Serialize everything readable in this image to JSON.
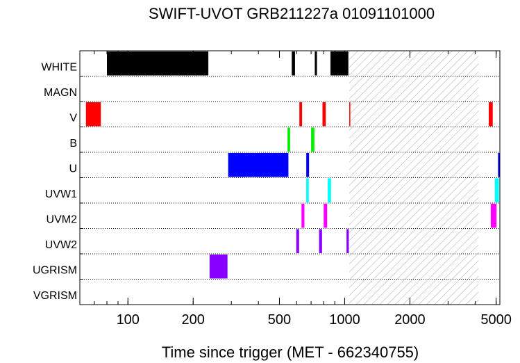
{
  "chart_data": {
    "type": "bar",
    "title": "SWIFT-UVOT GRB211227a 01091101000",
    "xlabel": "Time since trigger (MET - 662340755)",
    "ylabel": "",
    "x_scale": "log",
    "xlim": [
      60,
      5200
    ],
    "x_ticks": [
      {
        "value": 100,
        "label": "100"
      },
      {
        "value": 200,
        "label": "200"
      },
      {
        "value": 500,
        "label": "500"
      },
      {
        "value": 1000,
        "label": "1000"
      },
      {
        "value": 2000,
        "label": "2000"
      },
      {
        "value": 5000,
        "label": "5000"
      }
    ],
    "categories": [
      "WHITE",
      "MAGN",
      "V",
      "B",
      "U",
      "UVW1",
      "UVM2",
      "UVW2",
      "UGRISM",
      "VGRISM"
    ],
    "shaded_region": [
      1050,
      4150
    ],
    "series": [
      {
        "filter": "WHITE",
        "color": "#000000",
        "intervals": [
          [
            80,
            235
          ],
          [
            570,
            590
          ],
          [
            728,
            745
          ],
          [
            860,
            1040
          ]
        ]
      },
      {
        "filter": "MAGN",
        "color": "#000000",
        "intervals": []
      },
      {
        "filter": "V",
        "color": "#ff0000",
        "intervals": [
          [
            64,
            75
          ],
          [
            618,
            636
          ],
          [
            790,
            818
          ],
          [
            1050,
            1058
          ],
          [
            4620,
            4820
          ]
        ]
      },
      {
        "filter": "B",
        "color": "#00ee00",
        "intervals": [
          [
            545,
            560
          ],
          [
            700,
            725
          ]
        ]
      },
      {
        "filter": "U",
        "color": "#0000ff",
        "intervals": [
          [
            290,
            550
          ],
          [
            665,
            685
          ],
          [
            5100,
            5200
          ]
        ]
      },
      {
        "filter": "UVW1",
        "color": "#00ffff",
        "intervals": [
          [
            665,
            683
          ],
          [
            835,
            865
          ],
          [
            4930,
            5150
          ]
        ]
      },
      {
        "filter": "UVM2",
        "color": "#ff00ff",
        "intervals": [
          [
            632,
            652
          ],
          [
            800,
            830
          ],
          [
            4720,
            5020
          ]
        ]
      },
      {
        "filter": "UVW2",
        "color": "#8800ff",
        "intervals": [
          [
            598,
            616
          ],
          [
            762,
            786
          ],
          [
            1020,
            1045
          ]
        ]
      },
      {
        "filter": "UGRISM",
        "color": "#8800ff",
        "intervals": [
          [
            238,
            288
          ]
        ]
      },
      {
        "filter": "VGRISM",
        "color": "#8800ff",
        "intervals": []
      }
    ]
  }
}
